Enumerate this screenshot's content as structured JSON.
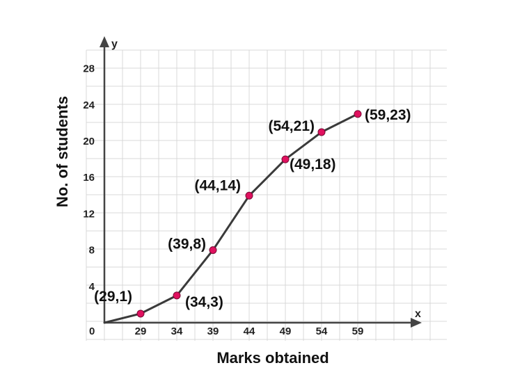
{
  "chart_data": {
    "type": "line",
    "title": "",
    "xlabel": "Marks obtained",
    "ylabel": "No. of students",
    "x_axis_letter": "x",
    "y_axis_letter": "y",
    "origin_label": "0",
    "x_ticks": [
      29,
      34,
      39,
      44,
      49,
      54,
      59
    ],
    "y_ticks": [
      4,
      8,
      12,
      16,
      20,
      24,
      28
    ],
    "grid": true,
    "series": [
      {
        "x": [
          29,
          34,
          39,
          44,
          49,
          54,
          59
        ],
        "y": [
          1,
          3,
          8,
          14,
          18,
          21,
          23
        ]
      }
    ],
    "start_point": [
      24,
      0
    ],
    "point_labels": [
      "(29,1)",
      "(34,3)",
      "(39,8)",
      "(44,14)",
      "(49,18)",
      "(54,21)",
      "(59,23)"
    ],
    "colors": {
      "line": "#3a3a3a",
      "point": "#e0115f",
      "grid": "#d8d8d8",
      "axis": "#444444"
    }
  }
}
